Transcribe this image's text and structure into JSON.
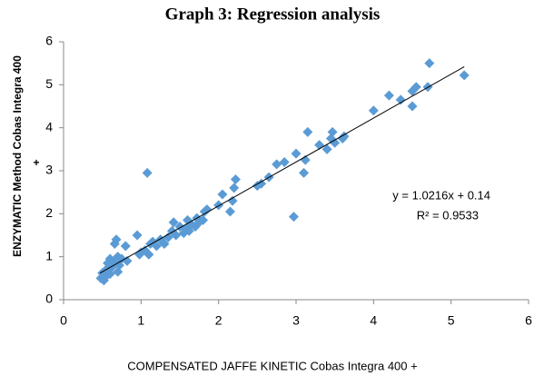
{
  "chart_data": {
    "type": "scatter",
    "title": "Graph 3: Regression analysis",
    "x_label": "COMPENSATED JAFFE KINETIC Cobas Integra 400 +",
    "y_label": "ENZYMATIC Method Cobas Integra 400",
    "y_label_suffix": "+",
    "annotations": [
      "y = 1.0216x + 0.14",
      "R² = 0.9533"
    ],
    "color": "#5b9bd5",
    "x": [
      0.48,
      0.5,
      0.52,
      0.55,
      0.55,
      0.57,
      0.6,
      0.6,
      0.62,
      0.65,
      0.66,
      0.68,
      0.7,
      0.7,
      0.72,
      0.75,
      0.8,
      0.82,
      0.95,
      0.98,
      1.0,
      1.05,
      1.08,
      1.1,
      1.12,
      1.15,
      1.2,
      1.25,
      1.3,
      1.35,
      1.4,
      1.42,
      1.45,
      1.5,
      1.55,
      1.58,
      1.6,
      1.62,
      1.65,
      1.7,
      1.72,
      1.75,
      1.8,
      1.82,
      1.85,
      2.0,
      2.05,
      2.15,
      2.18,
      2.2,
      2.22,
      2.5,
      2.55,
      2.65,
      2.75,
      2.85,
      2.97,
      3.0,
      3.1,
      3.12,
      3.15,
      3.3,
      3.4,
      3.45,
      3.47,
      3.5,
      3.6,
      3.62,
      4.0,
      4.2,
      4.35,
      4.5,
      4.5,
      4.55,
      4.7,
      4.72,
      5.17
    ],
    "values": [
      0.5,
      0.62,
      0.45,
      0.7,
      0.55,
      0.85,
      0.6,
      0.95,
      0.75,
      0.9,
      1.3,
      1.4,
      1.0,
      0.65,
      0.8,
      0.95,
      1.25,
      0.9,
      1.5,
      1.05,
      1.1,
      1.15,
      2.95,
      1.05,
      1.3,
      1.35,
      1.25,
      1.4,
      1.3,
      1.45,
      1.6,
      1.8,
      1.5,
      1.7,
      1.55,
      1.65,
      1.85,
      1.6,
      1.75,
      1.7,
      1.9,
      1.8,
      1.85,
      2.05,
      2.1,
      2.2,
      2.45,
      2.05,
      2.3,
      2.6,
      2.8,
      2.65,
      2.7,
      2.85,
      3.15,
      3.2,
      1.93,
      3.4,
      2.95,
      3.25,
      3.9,
      3.6,
      3.5,
      3.75,
      3.9,
      3.65,
      3.75,
      3.8,
      4.4,
      4.75,
      4.65,
      4.5,
      4.85,
      4.95,
      4.95,
      5.5,
      5.22
    ],
    "trendline": {
      "x": [
        0.47,
        5.17
      ],
      "y": [
        0.62,
        5.42
      ]
    },
    "xlim": [
      0,
      6
    ],
    "ylim": [
      0,
      6
    ],
    "xticks": [
      0,
      1,
      2,
      3,
      4,
      5,
      6
    ],
    "yticks": [
      0,
      1,
      2,
      3,
      4,
      5,
      6
    ]
  }
}
